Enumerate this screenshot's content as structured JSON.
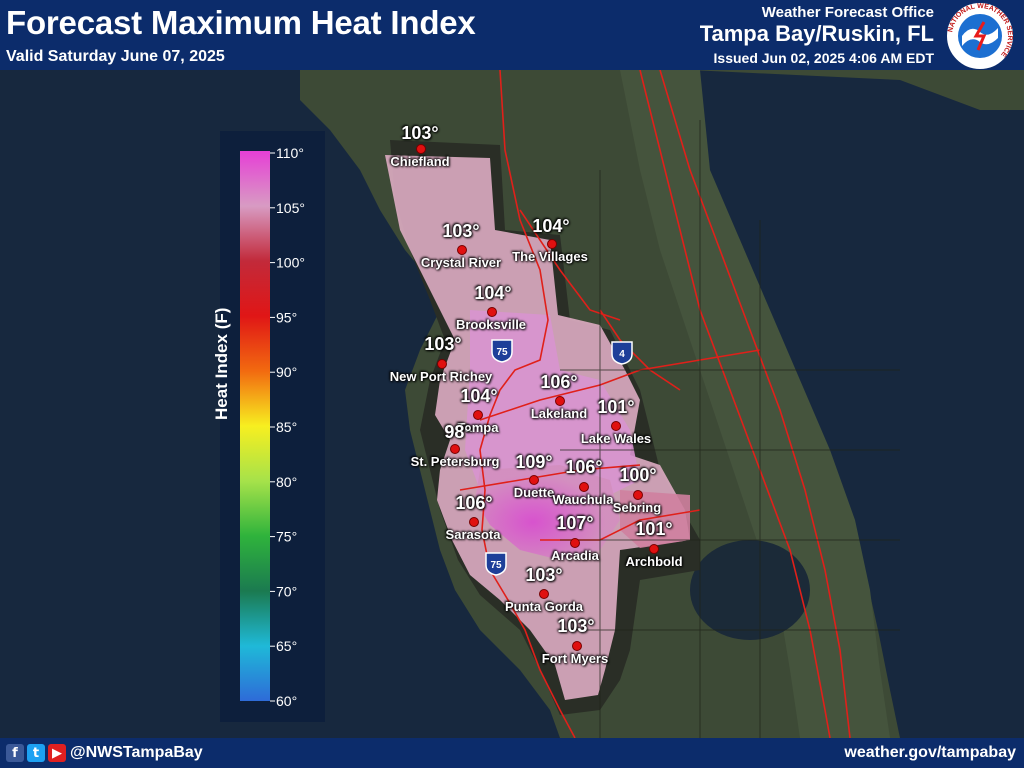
{
  "header": {
    "title": "Forecast Maximum Heat Index",
    "valid": "Valid Saturday June 07, 2025",
    "office_label": "Weather Forecast Office",
    "office_name": "Tampa Bay/Ruskin, FL",
    "issued": "Issued Jun 02, 2025 4:06 AM EDT",
    "logo_text": "NATIONAL WEATHER SERVICE"
  },
  "legend": {
    "title": "Heat Index (F)",
    "ticks": [
      "110°",
      "105°",
      "100°",
      "95°",
      "90°",
      "85°",
      "80°",
      "75°",
      "70°",
      "65°",
      "60°"
    ]
  },
  "cities": [
    {
      "name": "Chiefland",
      "value": "103°"
    },
    {
      "name": "Crystal River",
      "value": "103°"
    },
    {
      "name": "The Villages",
      "value": "104°"
    },
    {
      "name": "Brooksville",
      "value": "104°"
    },
    {
      "name": "New Port Richey",
      "value": "103°"
    },
    {
      "name": "Tampa",
      "value": "104°"
    },
    {
      "name": "Lakeland",
      "value": "106°"
    },
    {
      "name": "Lake Wales",
      "value": "101°"
    },
    {
      "name": "St. Petersburg",
      "value": "98°"
    },
    {
      "name": "Duette",
      "value": "109°"
    },
    {
      "name": "Wauchula",
      "value": "106°"
    },
    {
      "name": "Sebring",
      "value": "100°"
    },
    {
      "name": "Sarasota",
      "value": "106°"
    },
    {
      "name": "Arcadia",
      "value": "107°"
    },
    {
      "name": "Archbold",
      "value": "101°"
    },
    {
      "name": "Punta Gorda",
      "value": "103°"
    },
    {
      "name": "Fort Myers",
      "value": "103°"
    }
  ],
  "shields": [
    "75",
    "4",
    "75"
  ],
  "footer": {
    "social_icons": [
      "facebook-icon",
      "twitter-icon",
      "youtube-icon"
    ],
    "handle": "@NWSTampaBay",
    "website": "weather.gov/tampabay"
  },
  "colors": {
    "header_bg": "#0c2c6b",
    "city_dot": "#e01010",
    "roads": "#e0201a"
  }
}
